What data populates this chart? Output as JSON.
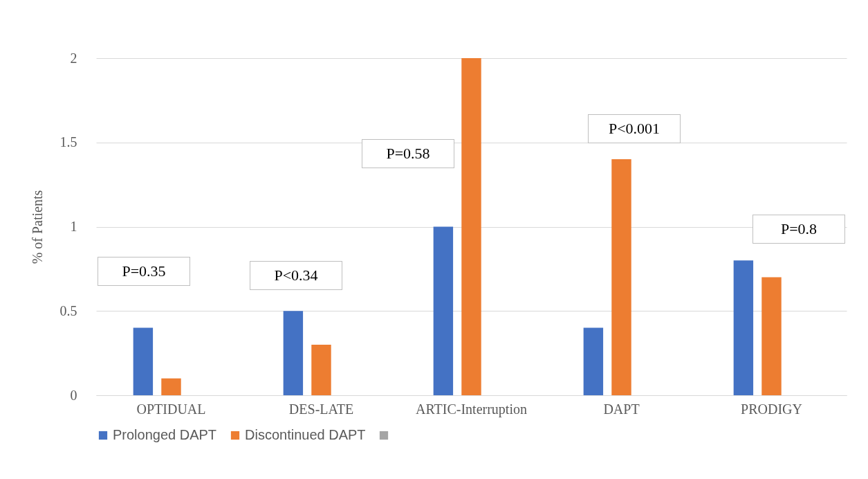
{
  "chart_data": {
    "type": "bar",
    "ylabel": "% of Patients",
    "categories": [
      "OPTIDUAL",
      "DES-LATE",
      "ARTIC-Interruption",
      "DAPT",
      "PRODIGY"
    ],
    "series": [
      {
        "name": "Prolonged DAPT",
        "color": "#4472c4",
        "values": [
          0.4,
          0.5,
          1.0,
          0.4,
          0.8
        ]
      },
      {
        "name": "Discontinued DAPT",
        "color": "#ed7d31",
        "values": [
          0.1,
          0.3,
          2.0,
          1.4,
          0.7
        ]
      }
    ],
    "ylim": [
      0,
      2
    ],
    "yticks": [
      0,
      0.5,
      1,
      1.5,
      2
    ],
    "grid": "y",
    "legend": "bottom",
    "annotations": [
      "P=0.35",
      "P<0.34",
      "P=0.58",
      "P<0.001",
      "P=0.8"
    ]
  }
}
